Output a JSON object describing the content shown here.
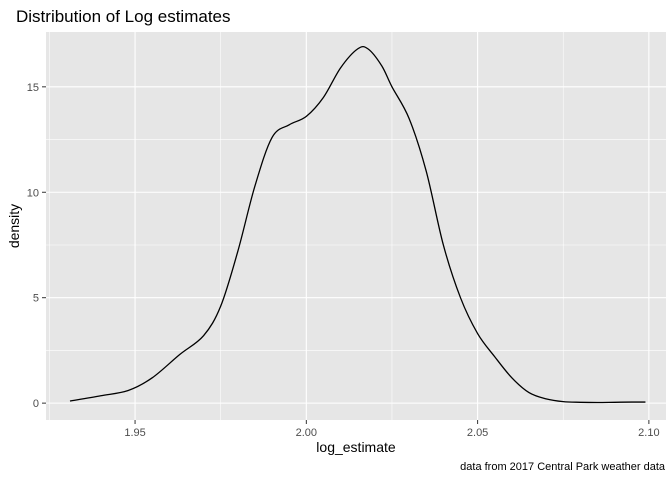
{
  "chart_data": {
    "type": "area",
    "title": "Distribution of Log estimates",
    "xlabel": "log_estimate",
    "ylabel": "density",
    "caption": "data from 2017 Central Park weather data",
    "xlim": [
      1.924,
      2.105
    ],
    "ylim": [
      -0.8,
      17.6
    ],
    "x_ticks": [
      1.95,
      2.0,
      2.05,
      2.1
    ],
    "x_tick_labels": [
      "1.95",
      "2.00",
      "2.05",
      "2.10"
    ],
    "y_ticks": [
      0,
      5,
      10,
      15
    ],
    "y_tick_labels": [
      "0",
      "5",
      "10",
      "15"
    ],
    "grid": true,
    "colors": {
      "panel": "#e6e6e6",
      "grid_major": "#ffffff",
      "line": "#000000"
    },
    "series": [
      {
        "x": [
          1.931,
          1.94,
          1.948,
          1.955,
          1.963,
          1.97,
          1.975,
          1.98,
          1.985,
          1.99,
          1.995,
          2.0,
          2.005,
          2.01,
          2.015,
          2.018,
          2.022,
          2.025,
          2.03,
          2.035,
          2.04,
          2.045,
          2.05,
          2.055,
          2.06,
          2.065,
          2.07,
          2.075,
          2.08,
          2.085,
          2.09,
          2.095,
          2.099
        ],
        "y": [
          0.1,
          0.35,
          0.6,
          1.2,
          2.3,
          3.2,
          4.6,
          7.2,
          10.3,
          12.6,
          13.2,
          13.6,
          14.5,
          15.9,
          16.8,
          16.8,
          16.0,
          15.0,
          13.5,
          11.0,
          7.5,
          5.0,
          3.3,
          2.2,
          1.2,
          0.5,
          0.2,
          0.07,
          0.04,
          0.03,
          0.04,
          0.05,
          0.05
        ]
      }
    ]
  }
}
